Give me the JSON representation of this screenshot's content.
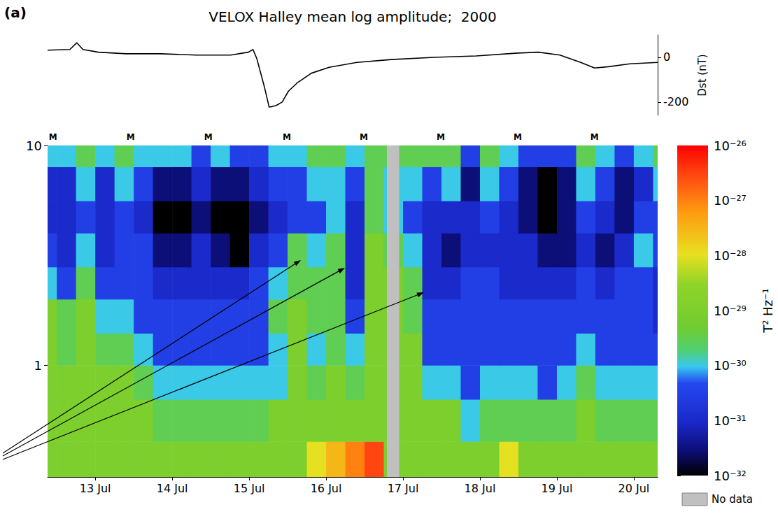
{
  "title": "VELOX Halley mean log amplitude;  2000",
  "panel_label": "(a)",
  "chart_data": [
    {
      "type": "line",
      "y_label": "Dst (nT)",
      "x": [
        12.88,
        13.17,
        13.26,
        13.34,
        13.54,
        13.9,
        14.35,
        14.81,
        15.26,
        15.49,
        15.55,
        15.6,
        15.7,
        15.76,
        15.85,
        15.93,
        16.01,
        16.13,
        16.31,
        16.54,
        16.9,
        17.35,
        17.9,
        18.45,
        18.99,
        19.26,
        19.54,
        19.81,
        19.99,
        20.17,
        20.45,
        20.81
      ],
      "series": [
        {
          "color": "#000000",
          "values": [
            32,
            35,
            65,
            35,
            23,
            16,
            16,
            10,
            10,
            23,
            35,
            -6,
            -135,
            -223,
            -216,
            -200,
            -152,
            -113,
            -71,
            -45,
            -23,
            -10,
            0,
            6,
            19,
            23,
            10,
            -23,
            -48,
            -42,
            -29,
            -23
          ]
        }
      ],
      "xlim": [
        12.88,
        20.81
      ],
      "ylim": [
        -260,
        100
      ],
      "yticks": [
        -200,
        0
      ],
      "tick_labels": "y",
      "grid": false
    },
    {
      "type": "heatmap",
      "xlim": [
        12.88,
        20.81
      ],
      "xticks": [
        {
          "value": 13.5,
          "label": "13 Jul"
        },
        {
          "value": 14.5,
          "label": "14 Jul"
        },
        {
          "value": 15.5,
          "label": "15 Jul"
        },
        {
          "value": 16.5,
          "label": "16 Jul"
        },
        {
          "value": 17.5,
          "label": "17 Jul"
        },
        {
          "value": 18.5,
          "label": "18 Jul"
        },
        {
          "value": 19.5,
          "label": "19 Jul"
        },
        {
          "value": 20.5,
          "label": "20 Jul"
        }
      ],
      "ylim": [
        0.31,
        10
      ],
      "yticks": [
        1,
        10
      ],
      "log": "y",
      "grid": false,
      "x_edges": [
        12.88,
        13,
        13.25,
        13.5,
        13.75,
        14,
        14.25,
        14.5,
        14.75,
        15,
        15.25,
        15.5,
        15.75,
        16,
        16.25,
        16.5,
        16.75,
        17,
        17.25,
        17.5,
        17.75,
        18,
        18.25,
        18.5,
        18.75,
        19,
        19.25,
        19.5,
        19.75,
        20,
        20.25,
        20.5,
        20.75,
        20.81
      ],
      "y_edges": [
        0.31,
        0.45,
        0.7,
        1,
        1.4,
        2,
        2.8,
        4,
        5.6,
        8,
        10
      ],
      "cells": [
        [
          1e-29,
          1e-29,
          1e-29,
          1e-29,
          1e-29,
          1e-29,
          1e-29,
          1e-29,
          1e-29,
          1e-29,
          1e-29,
          1e-29,
          1e-29,
          1e-29,
          1e-28,
          3e-28,
          1e-27,
          3e-27,
          1e-29,
          1e-29,
          1e-29,
          1e-29,
          1e-29,
          1e-29,
          1e-28,
          1e-29,
          1e-29,
          1e-29,
          1e-29,
          1e-29,
          1e-29,
          1e-29,
          1e-29
        ],
        [
          1e-29,
          1e-29,
          1e-29,
          1e-29,
          1e-29,
          1e-29,
          3e-30,
          3e-30,
          3e-30,
          3e-30,
          3e-30,
          3e-30,
          1e-29,
          1e-29,
          1e-29,
          1e-29,
          1e-29,
          1e-29,
          1e-29,
          1e-29,
          1e-29,
          1e-29,
          1e-30,
          3e-30,
          3e-30,
          3e-30,
          3e-30,
          3e-30,
          1e-29,
          3e-30,
          3e-30,
          3e-30,
          3e-30
        ],
        [
          1e-29,
          1e-29,
          1e-29,
          1e-29,
          1e-29,
          3e-30,
          1e-30,
          1e-30,
          1e-30,
          1e-30,
          1e-30,
          1e-30,
          1e-30,
          1e-29,
          3e-30,
          1e-29,
          3e-30,
          1e-29,
          1e-29,
          1e-29,
          1e-30,
          1e-30,
          3e-31,
          1e-30,
          1e-30,
          1e-30,
          3e-31,
          1e-30,
          3e-30,
          1e-30,
          1e-30,
          1e-30,
          1e-30
        ],
        [
          1e-29,
          3e-30,
          1e-29,
          3e-30,
          3e-30,
          1e-30,
          3e-31,
          3e-31,
          3e-31,
          3e-31,
          3e-31,
          3e-31,
          1e-30,
          1e-29,
          1e-30,
          3e-30,
          1e-30,
          1e-29,
          1e-29,
          1e-29,
          3e-31,
          3e-31,
          3e-31,
          3e-31,
          3e-31,
          3e-31,
          3e-31,
          3e-31,
          1e-30,
          3e-31,
          3e-31,
          3e-31,
          3e-31
        ],
        [
          1e-29,
          3e-30,
          1e-29,
          1e-30,
          1e-30,
          3e-31,
          3e-31,
          3e-31,
          3e-31,
          3e-31,
          3e-31,
          3e-31,
          3e-30,
          1e-29,
          3e-30,
          3e-30,
          3e-31,
          1e-29,
          1e-29,
          3e-30,
          3e-31,
          3e-31,
          3e-31,
          3e-31,
          3e-31,
          3e-31,
          3e-31,
          3e-31,
          3e-31,
          3e-31,
          3e-31,
          3e-31,
          1e-31
        ],
        [
          1e-30,
          3e-31,
          3e-30,
          3e-31,
          3e-31,
          3e-31,
          1e-31,
          1e-31,
          1e-31,
          1e-31,
          1e-31,
          3e-31,
          1e-30,
          3e-30,
          3e-30,
          3e-30,
          1e-31,
          1e-29,
          1e-29,
          3e-30,
          1e-31,
          1e-31,
          3e-31,
          3e-31,
          1e-31,
          1e-31,
          1e-31,
          1e-31,
          3e-31,
          1e-31,
          3e-31,
          3e-31,
          1e-31
        ],
        [
          3e-31,
          1e-31,
          1e-30,
          1e-31,
          3e-31,
          3e-31,
          3e-32,
          3e-32,
          1e-31,
          3e-32,
          1e-32,
          1e-31,
          3e-31,
          3e-30,
          1e-30,
          3e-30,
          1e-31,
          1e-29,
          3e-30,
          1e-30,
          1e-31,
          3e-32,
          1e-31,
          1e-31,
          1e-31,
          1e-31,
          3e-32,
          3e-32,
          1e-31,
          3e-32,
          1e-31,
          1e-30,
          3e-31
        ],
        [
          1e-31,
          1e-31,
          3e-31,
          1e-31,
          3e-31,
          1e-31,
          1e-32,
          1e-32,
          3e-32,
          1e-32,
          1e-32,
          3e-32,
          1e-31,
          3e-31,
          3e-31,
          1e-30,
          1e-31,
          3e-30,
          1e-30,
          3e-31,
          1e-31,
          1e-31,
          1e-31,
          3e-31,
          1e-31,
          3e-32,
          1e-32,
          3e-32,
          3e-31,
          1e-31,
          3e-32,
          3e-31,
          3e-31
        ],
        [
          1e-31,
          1e-31,
          1e-30,
          1e-31,
          1e-30,
          3e-31,
          3e-32,
          3e-32,
          1e-31,
          3e-32,
          3e-32,
          1e-31,
          3e-31,
          3e-31,
          1e-30,
          1e-30,
          3e-31,
          3e-30,
          1e-30,
          1e-30,
          3e-31,
          1e-30,
          3e-32,
          1e-30,
          3e-31,
          3e-32,
          1e-32,
          3e-32,
          1e-30,
          3e-31,
          3e-32,
          1e-31,
          1e-30
        ],
        [
          1e-30,
          1e-30,
          3e-30,
          1e-30,
          3e-30,
          1e-30,
          1e-30,
          1e-30,
          3e-31,
          1e-30,
          3e-31,
          3e-31,
          1e-30,
          1e-30,
          3e-30,
          3e-30,
          1e-30,
          3e-30,
          3e-30,
          3e-30,
          3e-30,
          3e-30,
          3e-31,
          3e-30,
          1e-30,
          3e-31,
          3e-31,
          3e-31,
          3e-30,
          1e-30,
          3e-31,
          1e-30,
          3e-30
        ]
      ],
      "colorbar": {
        "label": "T² Hz⁻¹",
        "log": true,
        "range": [
          1e-32,
          1e-26
        ],
        "ticks": [
          {
            "value": 1e-32,
            "label": "10⁻³²"
          },
          {
            "value": 1e-31,
            "label": "10⁻³¹"
          },
          {
            "value": 1e-30,
            "label": "10⁻³⁰"
          },
          {
            "value": 1e-29,
            "label": "10⁻²⁹"
          },
          {
            "value": 1e-28,
            "label": "10⁻²⁸"
          },
          {
            "value": 1e-27,
            "label": "10⁻²⁷"
          },
          {
            "value": 1e-26,
            "label": "10⁻²⁶"
          }
        ]
      },
      "annotations": {
        "text": "M",
        "x": [
          12.95,
          13.96,
          14.97,
          15.99,
          16.99,
          17.99,
          18.99,
          19.99
        ]
      },
      "no_data": {
        "label": "No data",
        "color": "#c0c0c0",
        "x_ranges": [
          [
            17.29,
            17.45
          ]
        ]
      }
    }
  ]
}
